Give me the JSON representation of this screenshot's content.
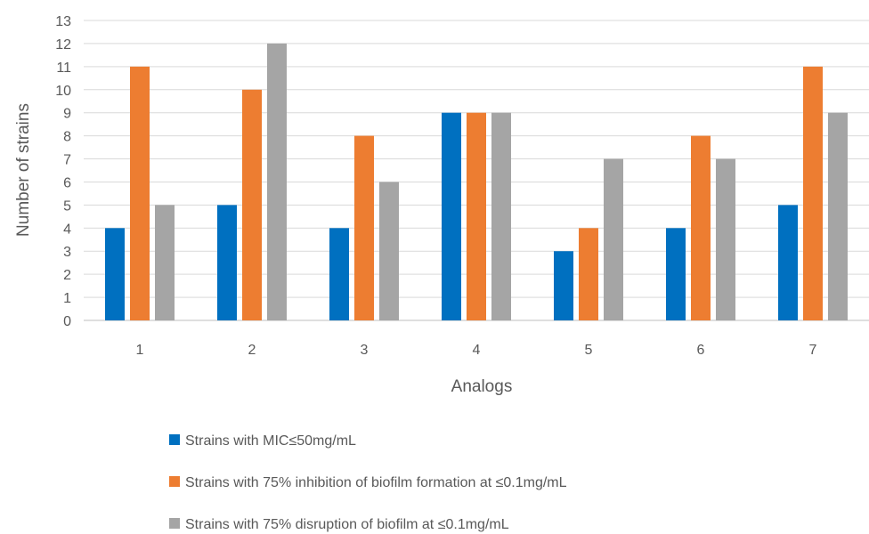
{
  "chart_data": {
    "type": "bar",
    "title": "",
    "xlabel": "Analogs",
    "ylabel": "Number of strains",
    "categories": [
      "1",
      "2",
      "3",
      "4",
      "5",
      "6",
      "7"
    ],
    "series": [
      {
        "name": "Strains with MIC≤50mg/mL",
        "color": "#0070C0",
        "values": [
          4,
          5,
          4,
          9,
          3,
          4,
          5
        ]
      },
      {
        "name": "Strains with 75% inhibition of biofilm formation at ≤0.1mg/mL",
        "color": "#ED7D31",
        "values": [
          11,
          10,
          8,
          9,
          4,
          8,
          11
        ]
      },
      {
        "name": "Strains with 75% disruption of biofilm at ≤0.1mg/mL",
        "color": "#A5A5A5",
        "values": [
          5,
          12,
          6,
          9,
          7,
          7,
          9
        ]
      }
    ],
    "ylim": [
      0,
      13
    ],
    "yticks": [
      0,
      1,
      2,
      3,
      4,
      5,
      6,
      7,
      8,
      9,
      10,
      11,
      12,
      13
    ],
    "grid": true,
    "legend_position": "bottom"
  }
}
